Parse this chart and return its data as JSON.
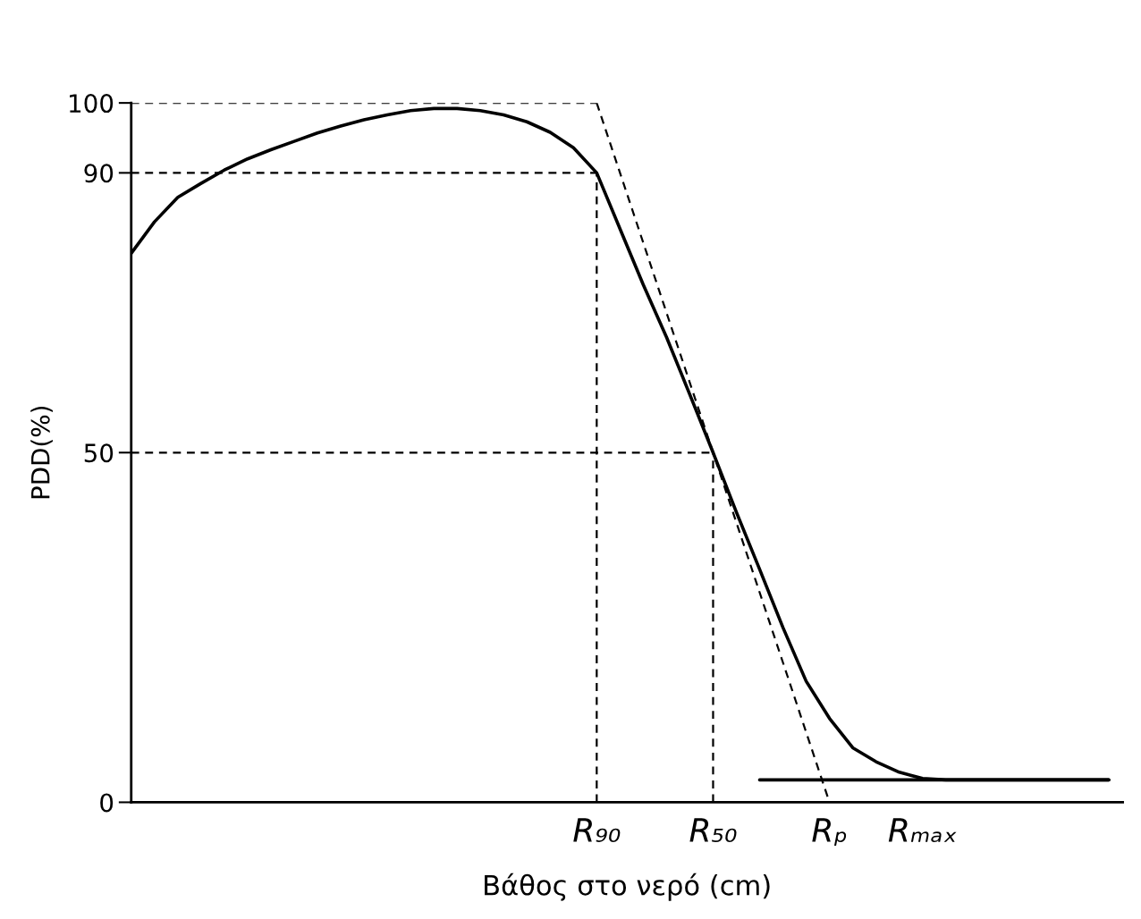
{
  "chart_data": {
    "type": "line",
    "xlabel": "Βάθος στο νερό (cm)",
    "ylabel": "PDD(%)",
    "categories": [
      null,
      null,
      null,
      null,
      null,
      null,
      null,
      null,
      null,
      null,
      null,
      null,
      null,
      null,
      null,
      null,
      null,
      null,
      null,
      null,
      "R₉₀",
      null,
      null,
      null,
      null,
      "R₅₀",
      null,
      null,
      null,
      null,
      "Rₚ",
      null,
      null,
      null,
      "Rₘₐₓ",
      null,
      null,
      null,
      null,
      null,
      null,
      null,
      null
    ],
    "ylim": [
      0,
      100
    ],
    "yticks": [
      0,
      50,
      90,
      100
    ],
    "ref_lines": [
      {
        "axis": "x",
        "value": "R₉₀",
        "line_style": "dashed",
        "color": "#000000"
      },
      {
        "axis": "x",
        "value": "R₅₀",
        "line_style": "dashed",
        "color": "#000000"
      }
    ],
    "series": [
      {
        "color": "#000000",
        "line_style": "solid",
        "values": [
          78.5,
          83,
          86.5,
          88.5,
          90.4,
          92,
          93.3,
          94.5,
          95.7,
          96.7,
          97.6,
          98.3,
          98.9,
          99.2,
          99.2,
          98.9,
          98.3,
          97.3,
          95.8,
          93.6,
          90,
          82,
          74,
          66.5,
          58.3,
          50,
          41.5,
          33.3,
          25,
          17.3,
          12,
          7.8,
          5.8,
          4.3,
          3.4,
          3.2,
          3.2,
          3.2,
          3.2,
          3.2,
          3.2,
          3.2,
          3.2
        ]
      },
      {
        "color": "#000000",
        "line_style": "solid",
        "values": [
          null,
          null,
          null,
          null,
          null,
          null,
          null,
          null,
          null,
          null,
          null,
          null,
          null,
          null,
          null,
          null,
          null,
          null,
          null,
          null,
          null,
          null,
          null,
          null,
          null,
          null,
          null,
          3.2,
          3.2,
          3.2,
          3.2,
          3.2,
          3.2,
          3.2,
          3.2,
          3.2,
          3.2,
          3.2,
          3.2,
          3.2,
          3.2,
          3.2,
          3.2
        ]
      },
      {
        "color": "#000000",
        "line_style": "dashed",
        "values": [
          null,
          null,
          null,
          null,
          null,
          null,
          null,
          null,
          null,
          null,
          null,
          null,
          null,
          null,
          null,
          null,
          null,
          null,
          null,
          null,
          100,
          90,
          80,
          70,
          60,
          50,
          40,
          30,
          20,
          10,
          0,
          null,
          null,
          null,
          null,
          null,
          null,
          null,
          null,
          null,
          null,
          null,
          null
        ]
      },
      {
        "color": "#000000",
        "line_style": "dashed",
        "values": [
          100,
          100,
          100,
          100,
          100,
          100,
          100,
          100,
          100,
          100,
          100,
          100,
          100,
          100,
          100,
          100,
          100,
          100,
          100,
          100,
          100,
          null,
          null,
          null,
          null,
          null,
          null,
          null,
          null,
          null,
          null,
          null,
          null,
          null,
          null,
          null,
          null,
          null,
          null,
          null,
          null,
          null,
          null
        ]
      },
      {
        "color": "#000000",
        "line_style": "dashed",
        "values": [
          90,
          90,
          90,
          90,
          90,
          90,
          90,
          90,
          90,
          90,
          90,
          90,
          90,
          90,
          90,
          90,
          90,
          90,
          90,
          90,
          90,
          null,
          null,
          null,
          null,
          null,
          null,
          null,
          null,
          null,
          null,
          null,
          null,
          null,
          null,
          null,
          null,
          null,
          null,
          null,
          null,
          null,
          null
        ]
      },
      {
        "color": "#000000",
        "line_style": "dashed",
        "values": [
          50,
          50,
          50,
          50,
          50,
          50,
          50,
          50,
          50,
          50,
          50,
          50,
          50,
          50,
          50,
          50,
          50,
          50,
          50,
          50,
          50,
          50,
          50,
          50,
          50,
          50,
          null,
          null,
          null,
          null,
          null,
          null,
          null,
          null,
          null,
          null,
          null,
          null,
          null,
          null,
          null,
          null,
          null
        ]
      }
    ]
  }
}
